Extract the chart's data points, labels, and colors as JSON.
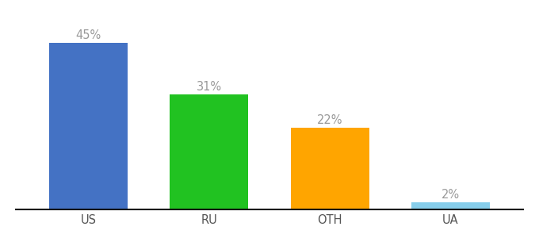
{
  "categories": [
    "US",
    "RU",
    "OTH",
    "UA"
  ],
  "values": [
    45,
    31,
    22,
    2
  ],
  "bar_colors": [
    "#4472C4",
    "#21C221",
    "#FFA500",
    "#87CEEB"
  ],
  "labels": [
    "45%",
    "31%",
    "22%",
    "2%"
  ],
  "background_color": "#ffffff",
  "ylim": [
    0,
    52
  ],
  "bar_width": 0.65,
  "label_fontsize": 10.5,
  "tick_fontsize": 10.5,
  "label_color": "#999999",
  "tick_color": "#555555",
  "bottom_spine_color": "#111111"
}
